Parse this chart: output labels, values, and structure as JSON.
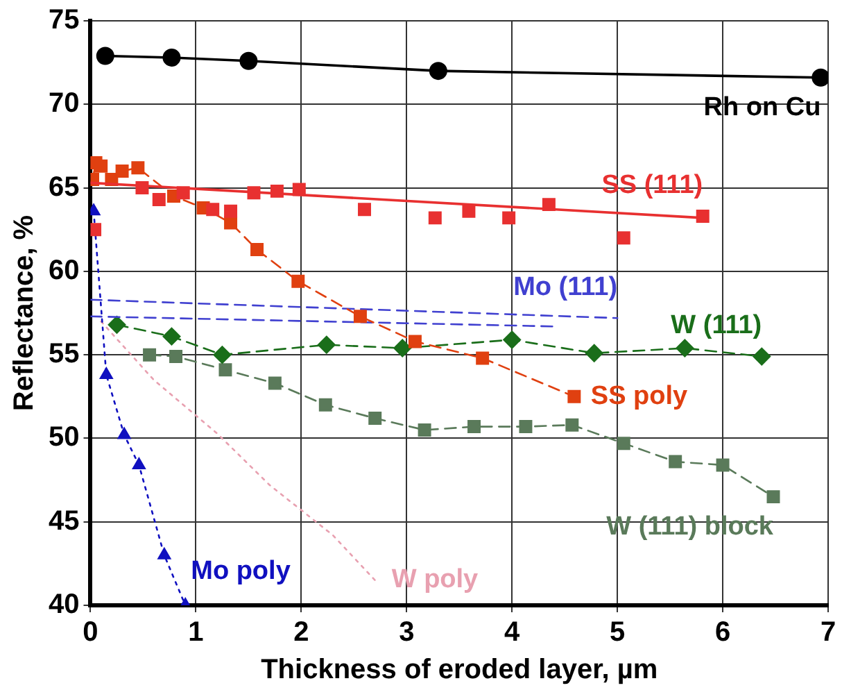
{
  "chart_data": {
    "type": "line",
    "xlabel": "Thickness of eroded layer, µm",
    "ylabel": "Reflectance, %",
    "xlim": [
      0,
      7
    ],
    "xticks": [
      0,
      1,
      2,
      3,
      4,
      5,
      6,
      7
    ],
    "ylim": [
      40,
      75
    ],
    "yticks": [
      40,
      45,
      50,
      55,
      60,
      65,
      70,
      75
    ],
    "grid": true,
    "legend": false,
    "series": [
      {
        "name": "Rh on Cu",
        "color": "#000000",
        "marker": "circle",
        "line_style": "solid",
        "x": [
          0.14,
          0.77,
          1.5,
          3.3,
          6.93
        ],
        "values": [
          72.9,
          72.8,
          72.6,
          72.0,
          71.6
        ]
      },
      {
        "name": "SS (111)",
        "type": "scatter",
        "color": "#e83030",
        "marker": "square",
        "x": [
          0.04,
          0.49,
          0.65,
          0.88,
          1.16,
          1.33,
          1.55,
          1.77,
          1.98,
          2.6,
          3.27,
          3.59,
          3.97,
          4.35,
          5.06,
          5.81
        ],
        "values": [
          62.5,
          65.0,
          64.3,
          64.7,
          63.7,
          63.6,
          64.7,
          64.8,
          64.9,
          63.7,
          63.2,
          63.6,
          63.2,
          64.0,
          62.0,
          63.3
        ]
      },
      {
        "color": "#e83030",
        "line_style": "solid",
        "marker": "none",
        "x": [
          0,
          5.81
        ],
        "values": [
          65.3,
          63.2
        ]
      },
      {
        "name": "SS poly",
        "color": "#e04010",
        "marker": "square",
        "line_style": "dashed",
        "x": [
          0.02,
          0.05,
          0.1,
          0.2,
          0.3,
          0.45,
          0.79,
          1.07,
          1.33,
          1.58,
          1.97,
          2.56,
          3.08,
          3.72,
          4.59
        ],
        "values": [
          65.5,
          66.5,
          66.3,
          65.5,
          66.0,
          66.2,
          64.5,
          63.8,
          62.9,
          61.3,
          59.4,
          57.3,
          55.8,
          54.8,
          52.5
        ]
      },
      {
        "name": "Mo (111)",
        "color": "#4040d0",
        "marker": "none",
        "line_style": "dashed",
        "x": [
          0,
          5.0
        ],
        "values": [
          58.3,
          57.2
        ]
      },
      {
        "color": "#4040d0",
        "marker": "none",
        "line_style": "dashed",
        "x": [
          0,
          4.4
        ],
        "values": [
          57.3,
          56.7
        ]
      },
      {
        "name": "W (111)",
        "color": "#1a6e1a",
        "marker": "diamond",
        "line_style": "dashed",
        "x": [
          0.25,
          0.77,
          1.25,
          2.24,
          2.96,
          4.0,
          4.78,
          5.64,
          6.37
        ],
        "values": [
          56.8,
          56.1,
          55.0,
          55.6,
          55.4,
          55.9,
          55.1,
          55.4,
          54.9
        ]
      },
      {
        "name": "W (111) block",
        "color": "#5a7a5a",
        "marker": "square",
        "line_style": "dashed",
        "x": [
          0.56,
          0.81,
          1.28,
          1.75,
          2.23,
          2.7,
          3.17,
          3.64,
          4.13,
          4.57,
          5.06,
          5.55,
          6.0,
          6.48
        ],
        "values": [
          55.0,
          54.9,
          54.1,
          53.3,
          52.0,
          51.2,
          50.5,
          50.7,
          50.7,
          50.8,
          49.7,
          48.6,
          48.4,
          46.5
        ]
      },
      {
        "name": "Mo poly",
        "color": "#1010c0",
        "marker": "triangle",
        "line_style": "dotted",
        "x": [
          0.03,
          0.15,
          0.32,
          0.46,
          0.7,
          0.9
        ],
        "values": [
          63.6,
          53.8,
          50.2,
          48.4,
          43.0,
          40.0
        ]
      },
      {
        "name": "W poly",
        "color": "#e8a0b0",
        "marker": "none",
        "line_style": "dotted",
        "x": [
          0.1,
          0.6,
          1.2,
          1.7,
          2.3,
          2.7
        ],
        "values": [
          57.0,
          53.5,
          50.3,
          47.2,
          44.2,
          41.5
        ]
      }
    ]
  }
}
